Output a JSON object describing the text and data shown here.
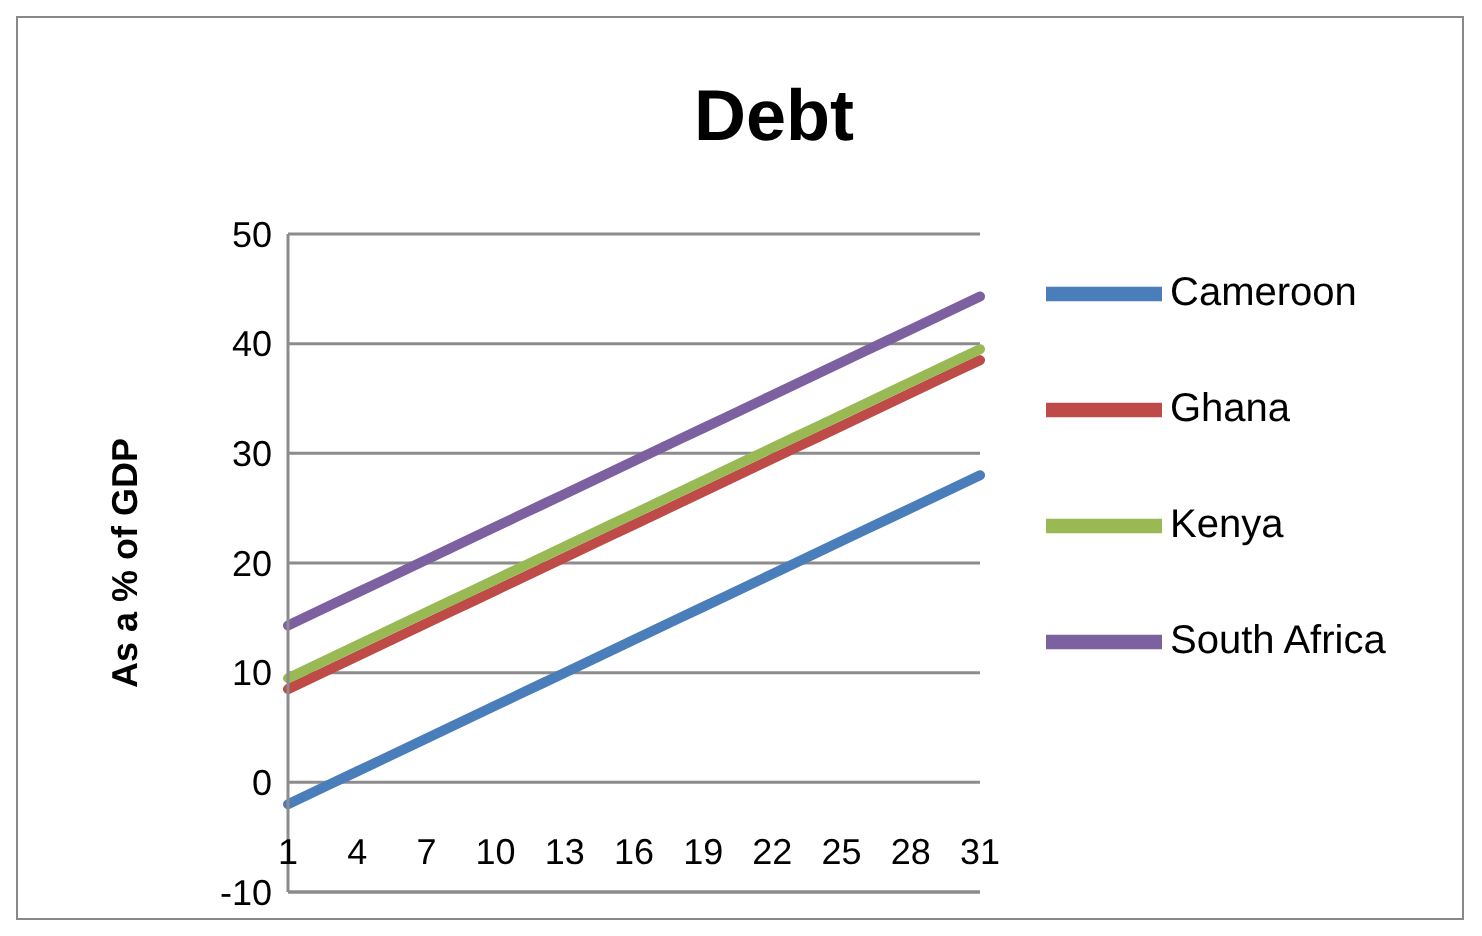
{
  "chart_data": {
    "type": "line",
    "title": "Debt",
    "ylabel": "As a % of GDP",
    "categories": [
      "1",
      null,
      null,
      "4",
      null,
      null,
      "7",
      null,
      null,
      "10",
      null,
      null,
      "13",
      null,
      null,
      "16",
      null,
      null,
      "19",
      null,
      null,
      "22",
      null,
      null,
      "25",
      null,
      null,
      "28",
      null,
      null,
      "31"
    ],
    "ylim": [
      -10,
      50
    ],
    "yticks": [
      -10,
      0,
      10,
      20,
      30,
      40,
      50
    ],
    "grid": "y",
    "legend": "right",
    "marker": "none",
    "line_style": "solid",
    "series": [
      {
        "name": "Cameroon",
        "color": "#4a7ebb",
        "values": [
          -2,
          -1,
          0,
          1,
          2,
          3,
          4,
          5,
          6,
          7,
          8,
          9,
          10,
          11,
          12,
          13,
          14,
          15,
          16,
          17,
          18,
          19,
          20,
          21,
          22,
          23,
          24,
          25,
          26,
          27,
          28
        ]
      },
      {
        "name": "Ghana",
        "color": "#be4b48",
        "values": [
          8.5,
          9.5,
          10.5,
          11.5,
          12.5,
          13.5,
          14.5,
          15.5,
          16.5,
          17.5,
          18.5,
          19.5,
          20.5,
          21.5,
          22.5,
          23.5,
          24.5,
          25.5,
          26.5,
          27.5,
          28.5,
          29.5,
          30.5,
          31.5,
          32.5,
          33.5,
          34.5,
          35.5,
          36.5,
          37.5,
          38.5
        ]
      },
      {
        "name": "Kenya",
        "color": "#98b954",
        "values": [
          9.5,
          10.5,
          11.5,
          12.5,
          13.5,
          14.5,
          15.5,
          16.5,
          17.5,
          18.5,
          19.5,
          20.5,
          21.5,
          22.5,
          23.5,
          24.5,
          25.5,
          26.5,
          27.5,
          28.5,
          29.5,
          30.5,
          31.5,
          32.5,
          33.5,
          34.5,
          35.5,
          36.5,
          37.5,
          38.5,
          39.5
        ]
      },
      {
        "name": "South Africa",
        "color": "#7d60a0",
        "values": [
          14.3,
          15.3,
          16.3,
          17.3,
          18.3,
          19.3,
          20.3,
          21.3,
          22.3,
          23.3,
          24.3,
          25.3,
          26.3,
          27.3,
          28.3,
          29.3,
          30.3,
          31.3,
          32.3,
          33.3,
          34.3,
          35.3,
          36.3,
          37.3,
          38.3,
          39.3,
          40.3,
          41.3,
          42.3,
          43.3,
          44.3
        ]
      }
    ]
  }
}
